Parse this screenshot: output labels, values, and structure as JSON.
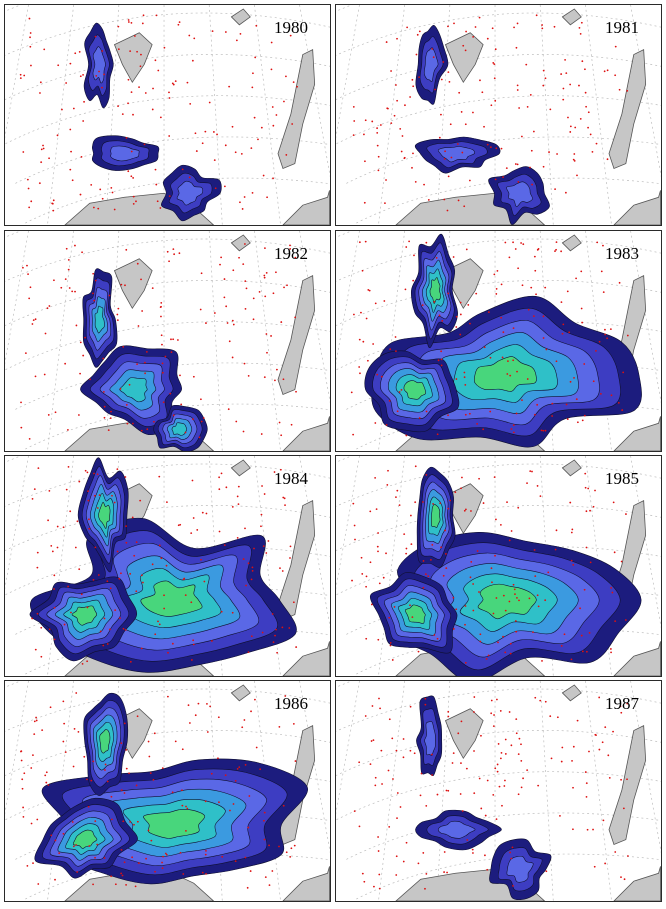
{
  "figure": {
    "panels": [
      {
        "year": "1980",
        "extent": "small"
      },
      {
        "year": "1981",
        "extent": "small"
      },
      {
        "year": "1982",
        "extent": "medium"
      },
      {
        "year": "1983",
        "extent": "large"
      },
      {
        "year": "1984",
        "extent": "large"
      },
      {
        "year": "1985",
        "extent": "large"
      },
      {
        "year": "1986",
        "extent": "large"
      },
      {
        "year": "1987",
        "extent": "small"
      }
    ],
    "colors": {
      "land": "#c6c6c6",
      "land_outline": "#555555",
      "graticule": "#bcbcbc",
      "stations": "#dd1111",
      "contour_levels": [
        "#1c1c7e",
        "#3d3dc2",
        "#5a68e6",
        "#3b9ae0",
        "#2fc0c8",
        "#48d67c"
      ],
      "contour_line": "#101030"
    }
  }
}
